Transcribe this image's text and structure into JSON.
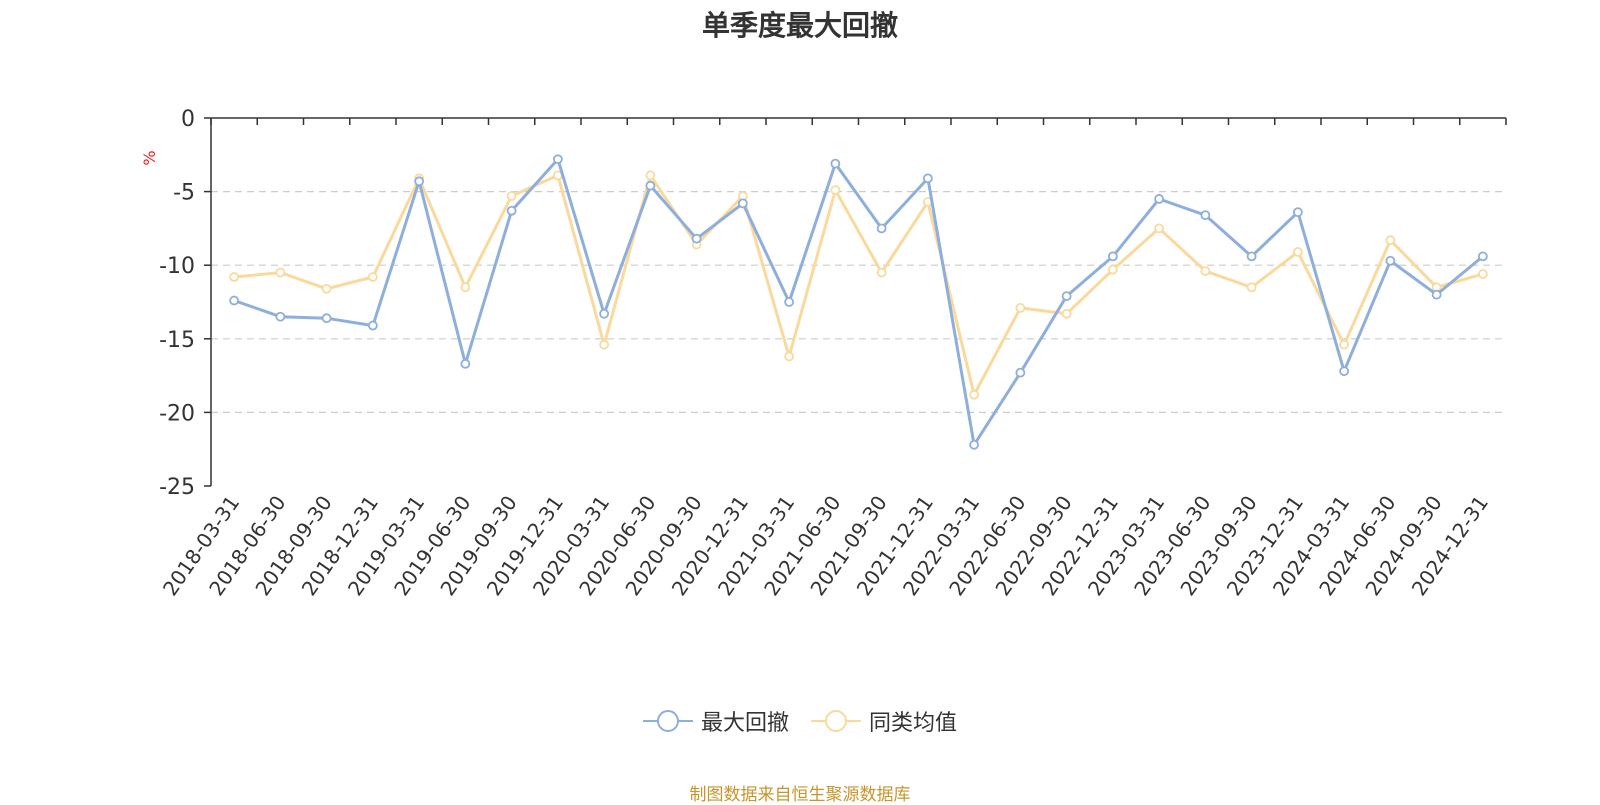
{
  "chart_data": {
    "type": "line",
    "title": "单季度最大回撤",
    "ylabel": "%",
    "xlabel": "",
    "ylim": [
      -25,
      0
    ],
    "yticks": [
      0,
      -5,
      -10,
      -15,
      -20,
      -25
    ],
    "grid": true,
    "legend_position": "bottom",
    "categories": [
      "2018-03-31",
      "2018-06-30",
      "2018-09-30",
      "2018-12-31",
      "2019-03-31",
      "2019-06-30",
      "2019-09-30",
      "2019-12-31",
      "2020-03-31",
      "2020-06-30",
      "2020-09-30",
      "2020-12-31",
      "2021-03-31",
      "2021-06-30",
      "2021-09-30",
      "2021-12-31",
      "2022-03-31",
      "2022-06-30",
      "2022-09-30",
      "2022-12-31",
      "2023-03-31",
      "2023-06-30",
      "2023-09-30",
      "2023-12-31",
      "2024-03-31",
      "2024-06-30",
      "2024-09-30",
      "2024-12-31"
    ],
    "series": [
      {
        "name": "最大回撤",
        "color": "#8eaedb",
        "values": [
          -12.4,
          -13.5,
          -13.6,
          -14.1,
          -4.3,
          -16.7,
          -6.3,
          -2.8,
          -13.3,
          -4.6,
          -8.2,
          -5.8,
          -12.5,
          -3.1,
          -7.5,
          -4.1,
          -22.2,
          -17.3,
          -12.1,
          -9.4,
          -5.5,
          -6.6,
          -9.4,
          -6.4,
          -17.2,
          -9.7,
          -12.0,
          -9.4
        ]
      },
      {
        "name": "同类均值",
        "color": "#f9d99c",
        "values": [
          -10.8,
          -10.5,
          -11.6,
          -10.8,
          -4.1,
          -11.5,
          -5.3,
          -3.9,
          -15.4,
          -3.9,
          -8.6,
          -5.3,
          -16.2,
          -4.9,
          -10.5,
          -5.7,
          -18.8,
          -12.9,
          -13.3,
          -10.3,
          -7.5,
          -10.4,
          -11.5,
          -9.1,
          -15.4,
          -8.3,
          -11.5,
          -10.6
        ]
      }
    ]
  },
  "source_note": "制图数据来自恒生聚源数据库"
}
